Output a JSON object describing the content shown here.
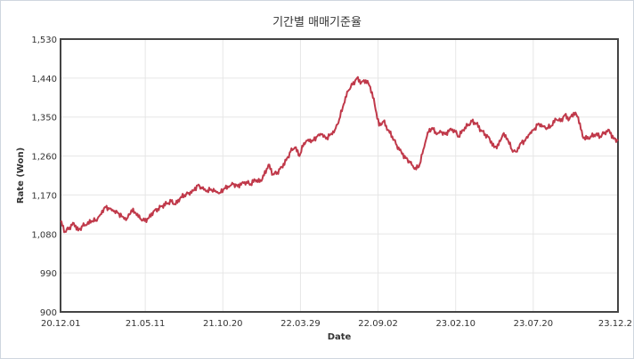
{
  "chart_data": {
    "type": "line",
    "title": "기간별 매매기준율",
    "xlabel": "Date",
    "ylabel": "Rate (Won)",
    "ylim": [
      900,
      1530
    ],
    "yticks": [
      "900",
      "990",
      "1,080",
      "1,170",
      "1,260",
      "1,350",
      "1,440",
      "1,530"
    ],
    "xticks": [
      "20.12.01",
      "21.05.11",
      "21.10.20",
      "22.03.29",
      "22.09.02",
      "23.02.10",
      "23.07.20",
      "23.12.2"
    ],
    "grid": true,
    "legend": "none",
    "series": [
      {
        "color": "#c0394a",
        "x": [
          0,
          5,
          10,
          15,
          20,
          25,
          30,
          35,
          40,
          45,
          50,
          55,
          60,
          65,
          70,
          75,
          80,
          85,
          90,
          95,
          100,
          105,
          110,
          115,
          120,
          125,
          130,
          135,
          140,
          145,
          150,
          155,
          160,
          165,
          170,
          175,
          180,
          185,
          190,
          195,
          200,
          205,
          210,
          215,
          220,
          225,
          230,
          235,
          240,
          245,
          250,
          255,
          260,
          265,
          270,
          275,
          280,
          285,
          290,
          295,
          300,
          305,
          310,
          315,
          320,
          325,
          330,
          335,
          340,
          345,
          350,
          355,
          360,
          365,
          370,
          375,
          380,
          385,
          390,
          395,
          400,
          405,
          410,
          415,
          420,
          425,
          430,
          435,
          440,
          445,
          450,
          455,
          460,
          465,
          470,
          475,
          480,
          485,
          490,
          495,
          500,
          505,
          510,
          515,
          520,
          525,
          530,
          535,
          540,
          545,
          550,
          555,
          560,
          565,
          570,
          575,
          580,
          585,
          590,
          595,
          600,
          605,
          610,
          615,
          620,
          625,
          630
        ],
        "y": [
          1110,
          1085,
          1095,
          1105,
          1088,
          1098,
          1102,
          1110,
          1112,
          1125,
          1142,
          1138,
          1132,
          1128,
          1120,
          1115,
          1135,
          1128,
          1115,
          1110,
          1118,
          1132,
          1138,
          1145,
          1150,
          1155,
          1148,
          1162,
          1170,
          1175,
          1180,
          1192,
          1185,
          1178,
          1183,
          1180,
          1175,
          1185,
          1188,
          1195,
          1190,
          1198,
          1200,
          1195,
          1205,
          1200,
          1215,
          1240,
          1218,
          1222,
          1235,
          1250,
          1270,
          1280,
          1260,
          1290,
          1298,
          1295,
          1305,
          1310,
          1300,
          1310,
          1320,
          1345,
          1380,
          1410,
          1425,
          1440,
          1430,
          1435,
          1420,
          1380,
          1330,
          1340,
          1320,
          1305,
          1285,
          1270,
          1255,
          1245,
          1230,
          1235,
          1275,
          1315,
          1325,
          1310,
          1315,
          1310,
          1322,
          1320,
          1305,
          1320,
          1330,
          1340,
          1335,
          1320,
          1310,
          1300,
          1280,
          1285,
          1310,
          1300,
          1275,
          1270,
          1290,
          1295,
          1310,
          1320,
          1335,
          1330,
          1325,
          1330,
          1345,
          1340,
          1355,
          1345,
          1360,
          1350,
          1305,
          1300,
          1305,
          1310,
          1305,
          1315,
          1320,
          1300,
          1295
        ]
      }
    ]
  }
}
